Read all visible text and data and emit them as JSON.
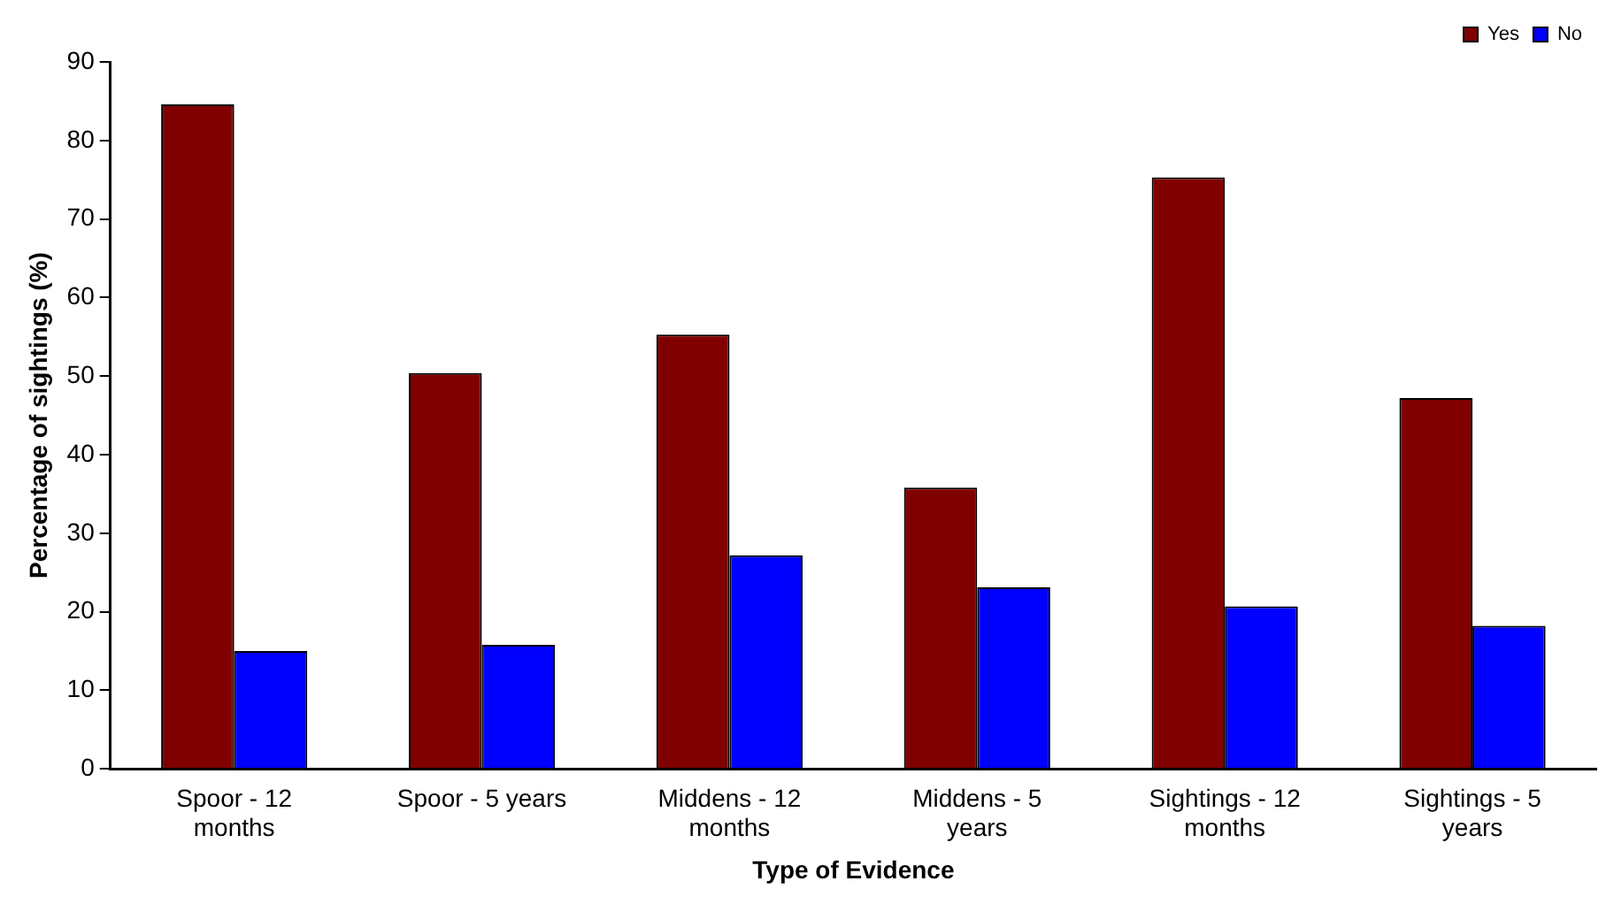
{
  "chart_data": {
    "type": "bar",
    "xlabel": "Type of Evidence",
    "ylabel": "Percentage of sightings (%)",
    "categories": [
      "Spoor - 12 months",
      "Spoor - 5 years",
      "Middens - 12 months",
      "Middens - 5 years",
      "Sightings - 12 months",
      "Sightings - 5 years"
    ],
    "series": [
      {
        "name": "Yes",
        "color": "#800000",
        "values": [
          84.6,
          50.4,
          55.3,
          35.8,
          75.3,
          47.2
        ]
      },
      {
        "name": "No",
        "color": "#0000ff",
        "values": [
          15.0,
          15.8,
          27.2,
          23.1,
          20.7,
          18.2
        ]
      }
    ],
    "ylim": [
      0,
      90
    ],
    "yticks": [
      0,
      10,
      20,
      30,
      40,
      50,
      60,
      70,
      80,
      90
    ],
    "grid": false,
    "legend": "top right"
  }
}
